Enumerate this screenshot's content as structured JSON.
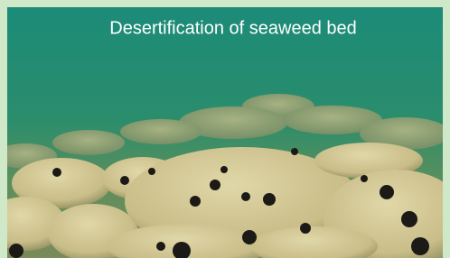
{
  "title": "Desertification of seaweed bed"
}
